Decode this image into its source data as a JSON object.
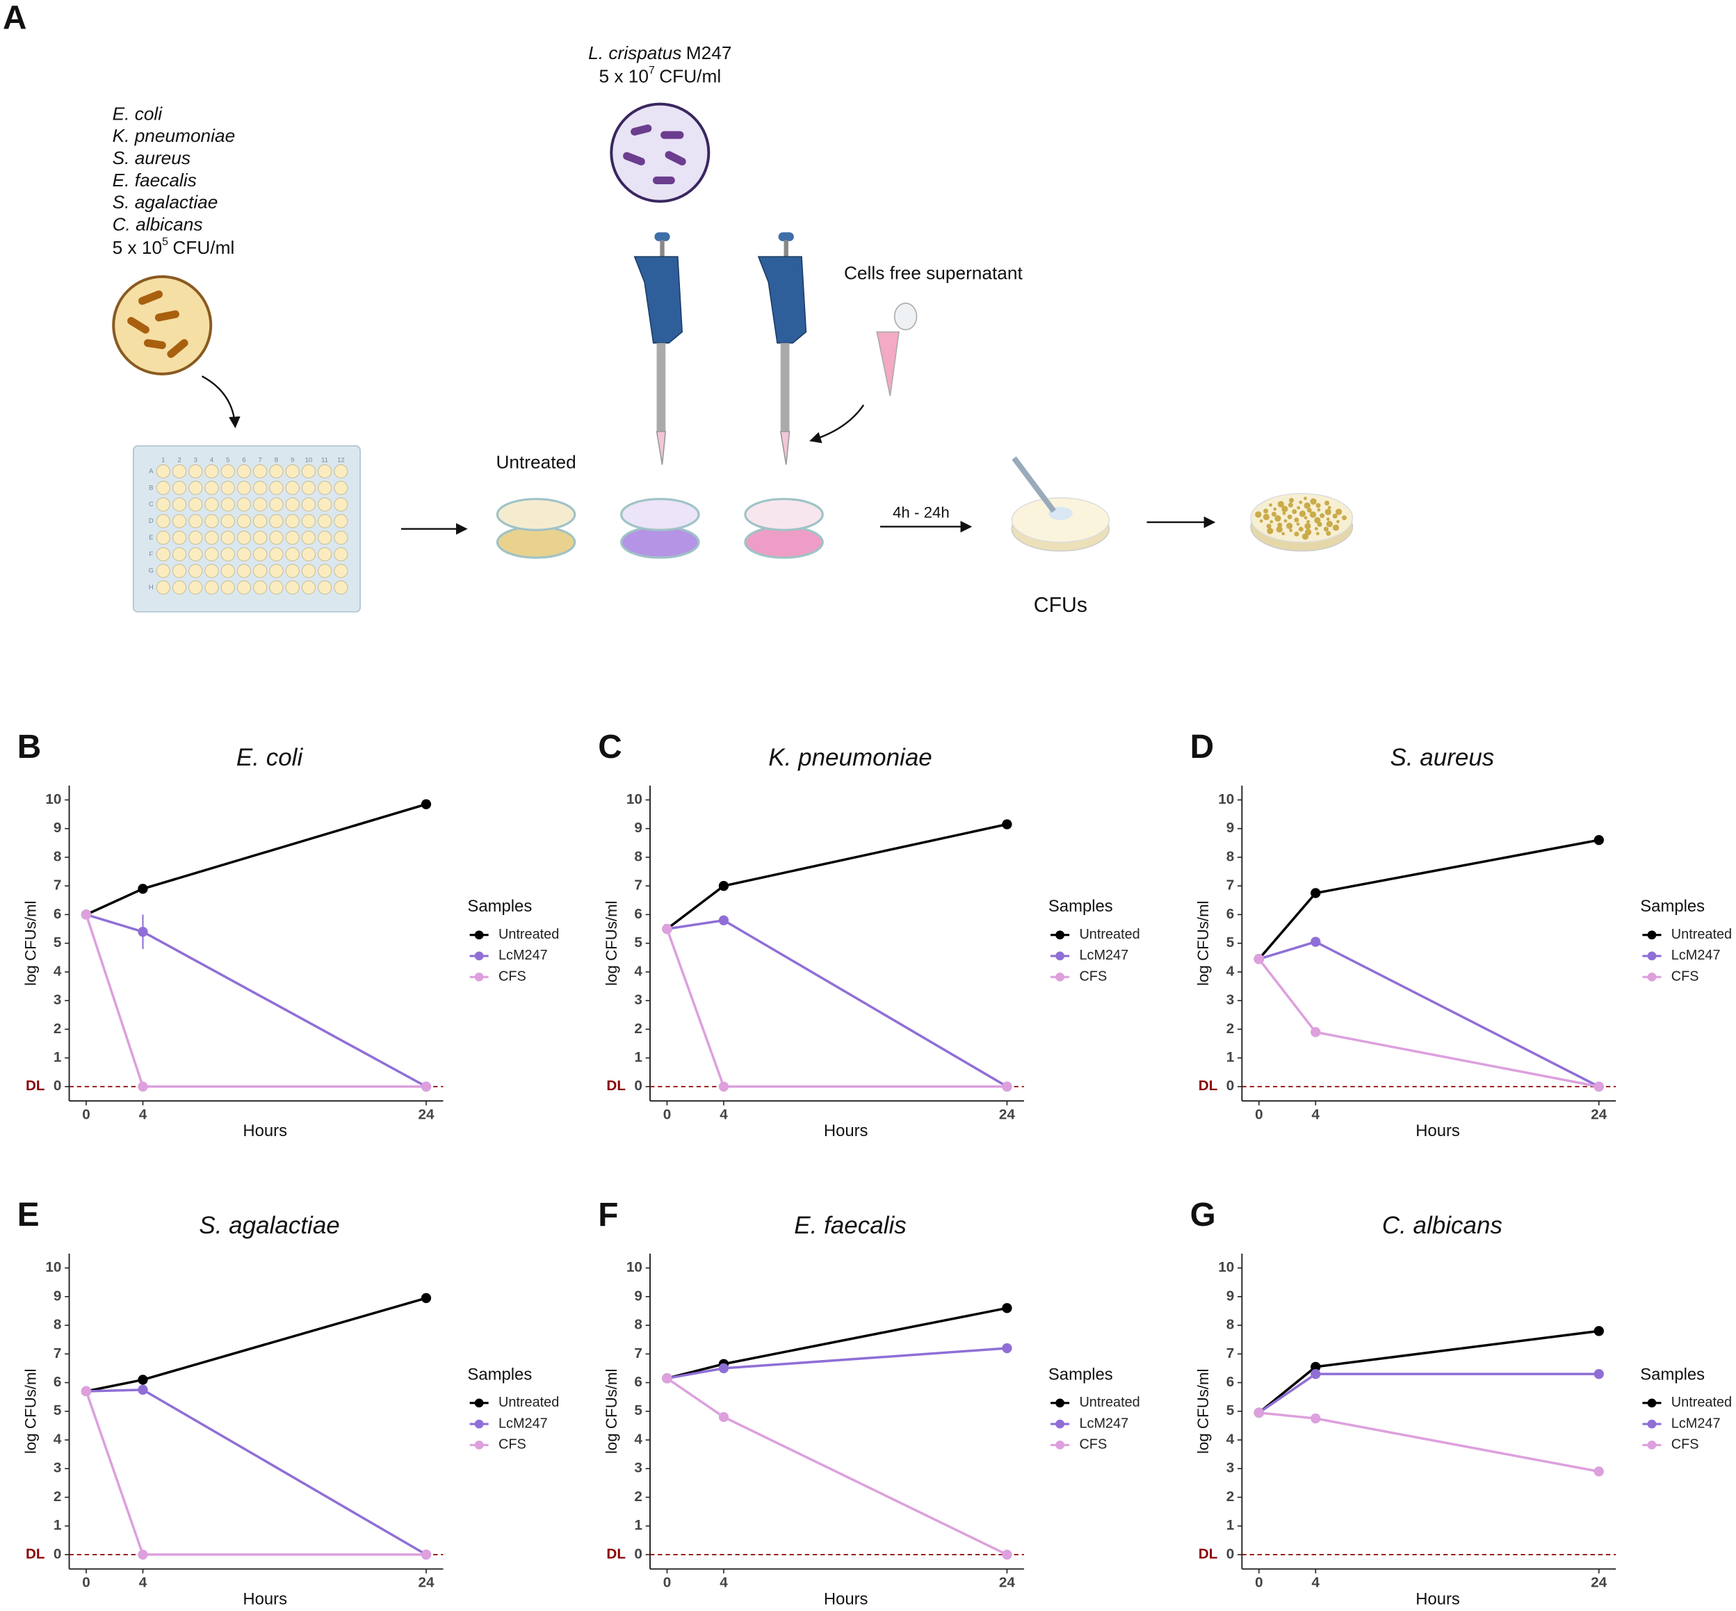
{
  "panel_a": {
    "label": "A",
    "pathogens": [
      "E. coli",
      "K. pneumoniae",
      "S. aureus",
      "E. faecalis",
      "S. agalactiae",
      "C. albicans"
    ],
    "pathogen_dose": {
      "base": "5 x 10",
      "exp": "5",
      "unit": "CFU/ml"
    },
    "probiotic": {
      "species": "L. crispatus",
      "strain": "M247"
    },
    "probiotic_dose": {
      "base": "5 x 10",
      "exp": "7",
      "unit": "CFU/ml"
    },
    "supernatant_label": "Cells free supernatant",
    "untreated_label": "Untreated",
    "incubation": "4h - 24h",
    "cfu_label": "CFUs",
    "plate": {
      "columns": [
        "1",
        "2",
        "3",
        "4",
        "5",
        "6",
        "7",
        "8",
        "9",
        "10",
        "11",
        "12"
      ],
      "rows": [
        "A",
        "B",
        "C",
        "D",
        "E",
        "F",
        "G",
        "H"
      ]
    }
  },
  "chart_data": [
    {
      "type": "line",
      "panel": "B",
      "title": "E. coli",
      "x_label": "Hours",
      "y_label": "log CFUs/ml",
      "legend_title": "Samples",
      "x": [
        0,
        4,
        24
      ],
      "xlim": [
        -1.2,
        25.2
      ],
      "xticks": [
        0,
        4,
        24
      ],
      "ylim": [
        -0.5,
        10.5
      ],
      "yticks": [
        0,
        1,
        2,
        3,
        4,
        5,
        6,
        7,
        8,
        9,
        10
      ],
      "reference_line": {
        "value": 0,
        "label": "DL",
        "color": "#8b0000"
      },
      "series": [
        {
          "name": "Untreated",
          "color": "#000000",
          "values": [
            6.0,
            6.9,
            9.85
          ]
        },
        {
          "name": "LcM247",
          "color": "#8f6fd6",
          "values": [
            6.0,
            5.4,
            0
          ],
          "errors": [
            null,
            0.6,
            null
          ]
        },
        {
          "name": "CFS",
          "color": "#dda0dd",
          "values": [
            6.0,
            0,
            0
          ]
        }
      ]
    },
    {
      "type": "line",
      "panel": "C",
      "title": "K. pneumoniae",
      "x_label": "Hours",
      "y_label": "log CFUs/ml",
      "legend_title": "Samples",
      "x": [
        0,
        4,
        24
      ],
      "xlim": [
        -1.2,
        25.2
      ],
      "xticks": [
        0,
        4,
        24
      ],
      "ylim": [
        -0.5,
        10.5
      ],
      "yticks": [
        0,
        1,
        2,
        3,
        4,
        5,
        6,
        7,
        8,
        9,
        10
      ],
      "reference_line": {
        "value": 0,
        "label": "DL",
        "color": "#8b0000"
      },
      "series": [
        {
          "name": "Untreated",
          "color": "#000000",
          "values": [
            5.5,
            7.0,
            9.15
          ]
        },
        {
          "name": "LcM247",
          "color": "#8f6fd6",
          "values": [
            5.5,
            5.8,
            0
          ]
        },
        {
          "name": "CFS",
          "color": "#dda0dd",
          "values": [
            5.5,
            0,
            0
          ]
        }
      ]
    },
    {
      "type": "line",
      "panel": "D",
      "title": "S. aureus",
      "x_label": "Hours",
      "y_label": "log CFUs/ml",
      "legend_title": "Samples",
      "x": [
        0,
        4,
        24
      ],
      "xlim": [
        -1.2,
        25.2
      ],
      "xticks": [
        0,
        4,
        24
      ],
      "ylim": [
        -0.5,
        10.5
      ],
      "yticks": [
        0,
        1,
        2,
        3,
        4,
        5,
        6,
        7,
        8,
        9,
        10
      ],
      "reference_line": {
        "value": 0,
        "label": "DL",
        "color": "#8b0000"
      },
      "series": [
        {
          "name": "Untreated",
          "color": "#000000",
          "values": [
            4.45,
            6.75,
            8.6
          ]
        },
        {
          "name": "LcM247",
          "color": "#8f6fd6",
          "values": [
            4.45,
            5.05,
            0
          ]
        },
        {
          "name": "CFS",
          "color": "#dda0dd",
          "values": [
            4.45,
            1.9,
            0
          ]
        }
      ]
    },
    {
      "type": "line",
      "panel": "E",
      "title": "S. agalactiae",
      "x_label": "Hours",
      "y_label": "log CFUs/ml",
      "legend_title": "Samples",
      "x": [
        0,
        4,
        24
      ],
      "xlim": [
        -1.2,
        25.2
      ],
      "xticks": [
        0,
        4,
        24
      ],
      "ylim": [
        -0.5,
        10.5
      ],
      "yticks": [
        0,
        1,
        2,
        3,
        4,
        5,
        6,
        7,
        8,
        9,
        10
      ],
      "reference_line": {
        "value": 0,
        "label": "DL",
        "color": "#8b0000"
      },
      "series": [
        {
          "name": "Untreated",
          "color": "#000000",
          "values": [
            5.7,
            6.1,
            8.95
          ]
        },
        {
          "name": "LcM247",
          "color": "#8f6fd6",
          "values": [
            5.7,
            5.75,
            0
          ]
        },
        {
          "name": "CFS",
          "color": "#dda0dd",
          "values": [
            5.7,
            0,
            0
          ]
        }
      ]
    },
    {
      "type": "line",
      "panel": "F",
      "title": "E. faecalis",
      "x_label": "Hours",
      "y_label": "log CFUs/ml",
      "legend_title": "Samples",
      "x": [
        0,
        4,
        24
      ],
      "xlim": [
        -1.2,
        25.2
      ],
      "xticks": [
        0,
        4,
        24
      ],
      "ylim": [
        -0.5,
        10.5
      ],
      "yticks": [
        0,
        1,
        2,
        3,
        4,
        5,
        6,
        7,
        8,
        9,
        10
      ],
      "reference_line": {
        "value": 0,
        "label": "DL",
        "color": "#8b0000"
      },
      "series": [
        {
          "name": "Untreated",
          "color": "#000000",
          "values": [
            6.15,
            6.65,
            8.6
          ]
        },
        {
          "name": "LcM247",
          "color": "#8f6fd6",
          "values": [
            6.15,
            6.5,
            7.2
          ]
        },
        {
          "name": "CFS",
          "color": "#dda0dd",
          "values": [
            6.15,
            4.8,
            0
          ]
        }
      ]
    },
    {
      "type": "line",
      "panel": "G",
      "title": "C. albicans",
      "x_label": "Hours",
      "y_label": "log CFUs/ml",
      "legend_title": "Samples",
      "x": [
        0,
        4,
        24
      ],
      "xlim": [
        -1.2,
        25.2
      ],
      "xticks": [
        0,
        4,
        24
      ],
      "ylim": [
        -0.5,
        10.5
      ],
      "yticks": [
        0,
        1,
        2,
        3,
        4,
        5,
        6,
        7,
        8,
        9,
        10
      ],
      "reference_line": {
        "value": 0,
        "label": "DL",
        "color": "#8b0000"
      },
      "series": [
        {
          "name": "Untreated",
          "color": "#000000",
          "values": [
            4.95,
            6.55,
            7.8
          ]
        },
        {
          "name": "LcM247",
          "color": "#8f6fd6",
          "values": [
            4.95,
            6.3,
            6.3
          ]
        },
        {
          "name": "CFS",
          "color": "#dda0dd",
          "values": [
            4.95,
            4.75,
            2.9
          ]
        }
      ]
    }
  ]
}
